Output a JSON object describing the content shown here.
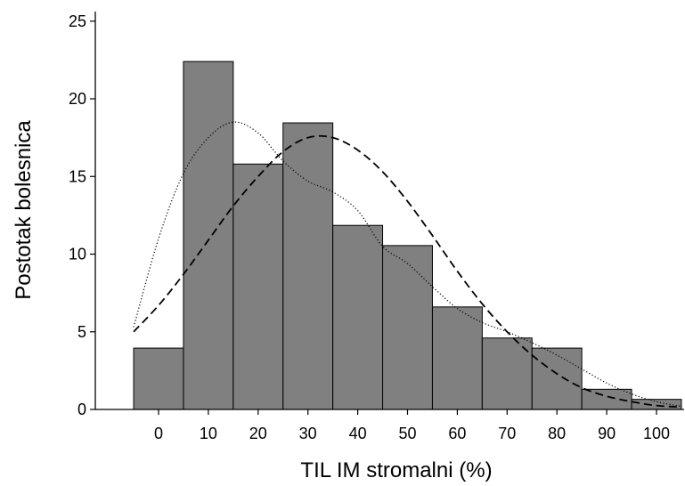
{
  "chart_data": {
    "type": "bar",
    "title": "",
    "xlabel": "TIL IM stromalni (%)",
    "ylabel": "Postotak bolesnica",
    "xlim": [
      -5,
      105
    ],
    "ylim": [
      0,
      25
    ],
    "x_ticks": [
      0,
      10,
      20,
      30,
      40,
      50,
      60,
      70,
      80,
      90,
      100
    ],
    "y_ticks": [
      0,
      5,
      10,
      15,
      20,
      25
    ],
    "bin_width": 10,
    "categories": [
      "0",
      "10",
      "20",
      "30",
      "40",
      "50",
      "60",
      "70",
      "80",
      "90",
      "100"
    ],
    "values": [
      3.95,
      22.4,
      15.8,
      18.45,
      11.85,
      10.55,
      6.6,
      4.6,
      3.95,
      1.3,
      0.65
    ],
    "bar_color": "#808080",
    "series": [
      {
        "kind": "normal-fit",
        "style": "dashed",
        "x": [
          -5,
          0,
          5,
          10,
          15,
          20,
          25,
          30,
          35,
          40,
          45,
          50,
          55,
          60,
          65,
          70,
          75,
          80,
          85,
          90,
          95,
          100,
          105
        ],
        "y": [
          5.0,
          6.7,
          8.7,
          10.9,
          13.1,
          15.0,
          16.6,
          17.5,
          17.5,
          16.7,
          15.3,
          13.4,
          11.2,
          8.9,
          6.8,
          5.0,
          3.5,
          2.3,
          1.4,
          0.85,
          0.5,
          0.25,
          0.15
        ]
      },
      {
        "kind": "density",
        "style": "dotted",
        "x": [
          -5,
          0,
          5,
          10,
          15,
          20,
          25,
          30,
          35,
          40,
          45,
          50,
          55,
          60,
          65,
          70,
          75,
          80,
          85,
          90,
          95,
          100,
          105
        ],
        "y": [
          5.3,
          11.0,
          15.2,
          17.5,
          18.5,
          17.8,
          16.0,
          14.7,
          14.0,
          12.8,
          10.5,
          9.4,
          7.9,
          6.5,
          5.6,
          5.0,
          4.3,
          3.5,
          2.6,
          1.7,
          1.0,
          0.5,
          0.2
        ]
      }
    ]
  }
}
